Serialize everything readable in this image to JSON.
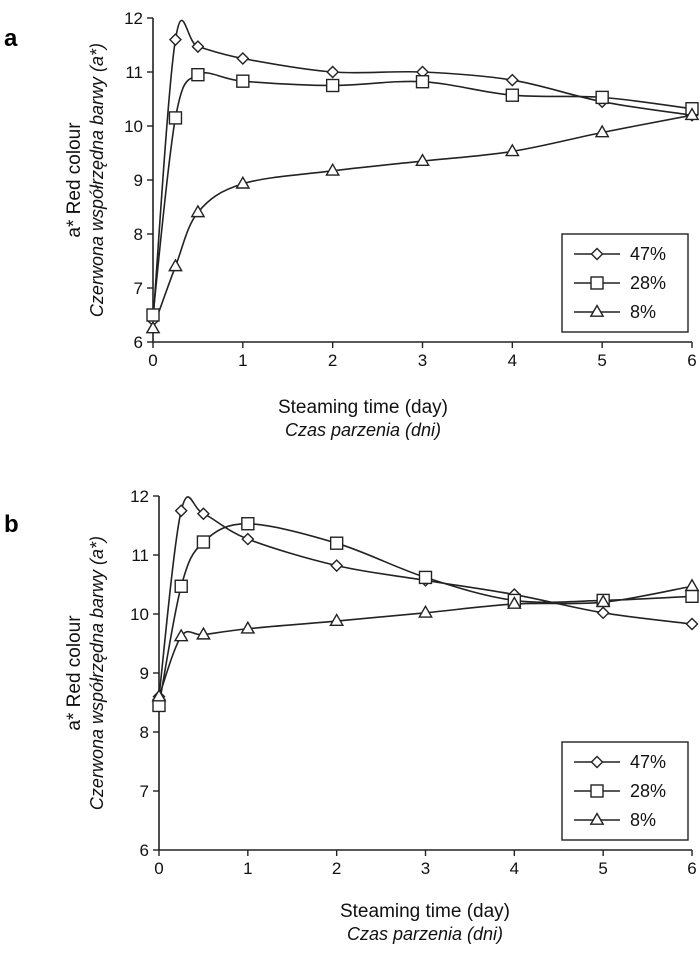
{
  "chart_data": [
    {
      "panel": "a",
      "type": "line",
      "xlabel": "Steaming time (day)",
      "xlabel_pl": "Czas parzenia (dni)",
      "ylabel": "a* Red colour",
      "ylabel_pl": "Czerwona współrzędna barwy (a*)",
      "xlim": [
        0,
        6
      ],
      "ylim": [
        6,
        12
      ],
      "xticks": [
        "0",
        "1",
        "2",
        "3",
        "4",
        "5",
        "6"
      ],
      "yticks": [
        "6",
        "7",
        "8",
        "9",
        "10",
        "11",
        "12"
      ],
      "grid": false,
      "legend_position": "bottom-right",
      "series": [
        {
          "name": "47%",
          "marker": "diamond",
          "x": [
            0,
            0.25,
            0.5,
            1,
            2,
            3,
            4,
            5,
            6
          ],
          "y": [
            6.4,
            11.6,
            11.47,
            11.25,
            11.0,
            11.0,
            10.85,
            10.45,
            10.2
          ]
        },
        {
          "name": "28%",
          "marker": "square",
          "x": [
            0,
            0.25,
            0.5,
            1,
            2,
            3,
            4,
            5,
            6
          ],
          "y": [
            6.5,
            10.15,
            10.95,
            10.83,
            10.75,
            10.82,
            10.57,
            10.53,
            10.32
          ]
        },
        {
          "name": "8%",
          "marker": "triangle",
          "x": [
            0,
            0.25,
            0.5,
            1,
            2,
            3,
            4,
            5,
            6
          ],
          "y": [
            6.25,
            7.4,
            8.4,
            8.93,
            9.17,
            9.35,
            9.53,
            9.88,
            10.2
          ]
        }
      ]
    },
    {
      "panel": "b",
      "type": "line",
      "xlabel": "Steaming time (day)",
      "xlabel_pl": "Czas parzenia (dni)",
      "ylabel": "a* Red colour",
      "ylabel_pl": "Czerwona współrzędna barwy (a*)",
      "xlim": [
        0,
        6
      ],
      "ylim": [
        6,
        12
      ],
      "xticks": [
        "0",
        "1",
        "2",
        "3",
        "4",
        "5",
        "6"
      ],
      "yticks": [
        "6",
        "7",
        "8",
        "9",
        "10",
        "11",
        "12"
      ],
      "grid": false,
      "legend_position": "bottom-right",
      "series": [
        {
          "name": "47%",
          "marker": "diamond",
          "x": [
            0,
            0.25,
            0.5,
            1,
            2,
            3,
            4,
            5,
            6
          ],
          "y": [
            8.6,
            11.75,
            11.7,
            11.27,
            10.82,
            10.57,
            10.33,
            10.02,
            9.83
          ]
        },
        {
          "name": "28%",
          "marker": "square",
          "x": [
            0,
            0.25,
            0.5,
            1,
            2,
            3,
            4,
            5,
            6
          ],
          "y": [
            8.45,
            10.47,
            11.22,
            11.53,
            11.2,
            10.62,
            10.23,
            10.23,
            10.3
          ]
        },
        {
          "name": "8%",
          "marker": "triangle",
          "x": [
            0,
            0.25,
            0.5,
            1,
            2,
            3,
            4,
            5,
            6
          ],
          "y": [
            8.6,
            9.62,
            9.65,
            9.75,
            9.88,
            10.02,
            10.17,
            10.2,
            10.47
          ]
        }
      ]
    }
  ]
}
